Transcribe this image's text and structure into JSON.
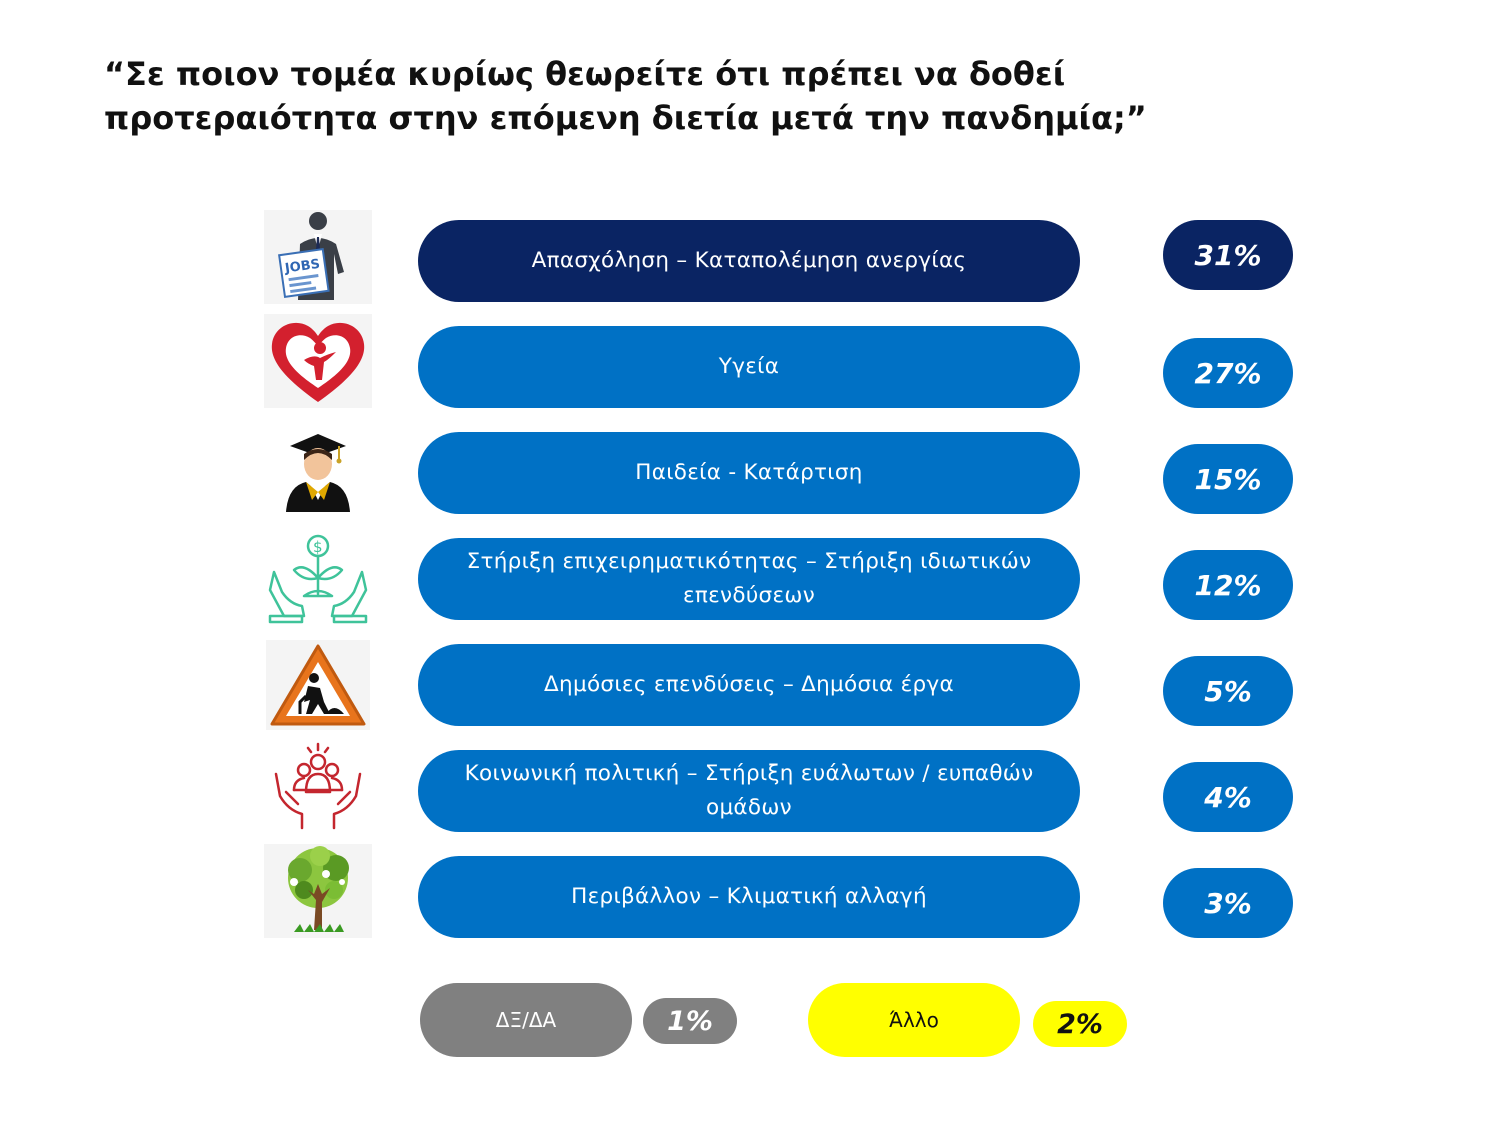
{
  "title": {
    "line1": "“Σε ποιον τομέα κυρίως θεωρείτε ότι πρέπει να δοθεί",
    "line2": "προτεραιότητα στην επόμενη διετία μετά την πανδημία;”"
  },
  "colors": {
    "primary_bar": "#0071c5",
    "highlight_bar": "#0a2463",
    "dk_na": "#808080",
    "other": "#ffff00"
  },
  "chart_data": {
    "type": "bar",
    "title": "Σε ποιον τομέα κυρίως θεωρείτε ότι πρέπει να δοθεί προτεραιότητα στην επόμενη διετία μετά την πανδημία;",
    "unit": "%",
    "categories": [
      "Απασχόληση – Καταπολέμηση ανεργίας",
      "Υγεία",
      "Παιδεία - Κατάρτιση",
      "Στήριξη επιχειρηματικότητας – Στήριξη ιδιωτικών επενδύσεων",
      "Δημόσιες επενδύσεις – Δημόσια έργα",
      "Κοινωνική πολιτική – Στήριξη ευάλωτων / ευπαθών ομάδων",
      "Περιβάλλον – Κλιματική αλλαγή",
      "ΔΞ/ΔΑ",
      "Άλλο"
    ],
    "values": [
      31,
      27,
      15,
      12,
      5,
      4,
      3,
      1,
      2
    ]
  },
  "rows": [
    {
      "label": "Απασχόληση – Καταπολέμηση ανεργίας",
      "pct": "31%",
      "icon": "jobs-icon"
    },
    {
      "label": "Υγεία",
      "pct": "27%",
      "icon": "health-heart-icon"
    },
    {
      "label": "Παιδεία - Κατάρτιση",
      "pct": "15%",
      "icon": "graduate-icon"
    },
    {
      "label": "Στήριξη επιχειρηματικότητας – Στήριξη ιδιωτικών επενδύσεων",
      "pct": "12%",
      "icon": "investment-plant-icon"
    },
    {
      "label": "Δημόσιες επενδύσεις – Δημόσια έργα",
      "pct": "5%",
      "icon": "road-works-sign-icon"
    },
    {
      "label": "Κοινωνική πολιτική – Στήριξη ευάλωτων / ευπαθών ομάδων",
      "pct": "4%",
      "icon": "community-hands-icon"
    },
    {
      "label": "Περιβάλλον – Κλιματική αλλαγή",
      "pct": "3%",
      "icon": "eco-tree-icon"
    }
  ],
  "extras": {
    "dk": {
      "label": "ΔΞ/ΔΑ",
      "pct": "1%"
    },
    "other": {
      "label": "Άλλο",
      "pct": "2%"
    }
  }
}
